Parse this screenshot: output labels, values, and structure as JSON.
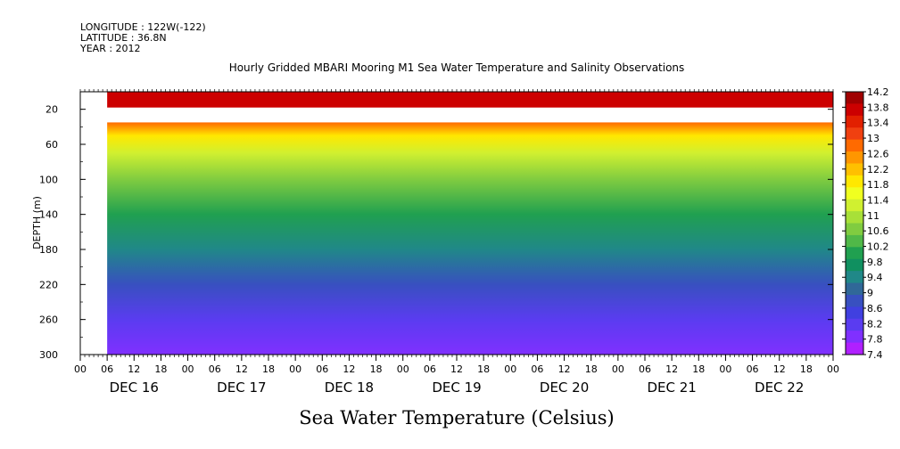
{
  "header": {
    "longitude": "LONGITUDE : 122W(-122)",
    "latitude": "LATITUDE : 36.8N",
    "year": "YEAR : 2012"
  },
  "chart_data": {
    "type": "heatmap",
    "title": "Hourly Gridded MBARI Mooring M1 Sea Water Temperature and Salinity Observations",
    "xlabel": "",
    "ylabel": "DEPTH (m)",
    "colorbar_label": "Sea Water Temperature (Celsius)",
    "ylim": [
      0,
      300
    ],
    "y_inverted": true,
    "y_ticks": [
      20,
      60,
      100,
      140,
      180,
      220,
      260,
      300
    ],
    "x_hour_ticks": [
      "00",
      "06",
      "12",
      "18",
      "00",
      "06",
      "12",
      "18",
      "00",
      "06",
      "12",
      "18",
      "00",
      "06",
      "12",
      "18",
      "00",
      "06",
      "12",
      "18",
      "00",
      "06",
      "12",
      "18",
      "00",
      "06",
      "12",
      "18",
      "00"
    ],
    "x_day_labels": [
      "DEC 16",
      "DEC 17",
      "DEC 18",
      "DEC 19",
      "DEC 20",
      "DEC 21",
      "DEC 22"
    ],
    "data_start_hour": 6,
    "colorbar_ticks": [
      "14.2",
      "13.8",
      "13.4",
      "13",
      "12.6",
      "12.2",
      "11.8",
      "11.4",
      "11",
      "10.6",
      "10.2",
      "9.8",
      "9.4",
      "9",
      "8.6",
      "8.2",
      "7.8",
      "7.4"
    ],
    "colorbar_colors": [
      "#a00000",
      "#cc0000",
      "#e22000",
      "#f04010",
      "#ff6a00",
      "#ff9600",
      "#ffc000",
      "#ffe800",
      "#f0ff20",
      "#d0f030",
      "#a8e038",
      "#80cc40",
      "#50b848",
      "#20a050",
      "#109060",
      "#208888",
      "#306898",
      "#3850c0",
      "#4040e0",
      "#5a3cf0",
      "#8030ff",
      "#b020ff"
    ],
    "depth_rows": [
      {
        "depth": 8,
        "value": 14.0
      },
      {
        "depth": 35,
        "value": 12.8
      },
      {
        "depth": 50,
        "value": 11.9
      },
      {
        "depth": 70,
        "value": 11.2
      },
      {
        "depth": 100,
        "value": 10.6
      },
      {
        "depth": 140,
        "value": 10.0
      },
      {
        "depth": 180,
        "value": 9.4
      },
      {
        "depth": 220,
        "value": 8.8
      },
      {
        "depth": 260,
        "value": 8.2
      },
      {
        "depth": 300,
        "value": 7.7
      }
    ],
    "no_data_depths": [
      18,
      35
    ]
  }
}
